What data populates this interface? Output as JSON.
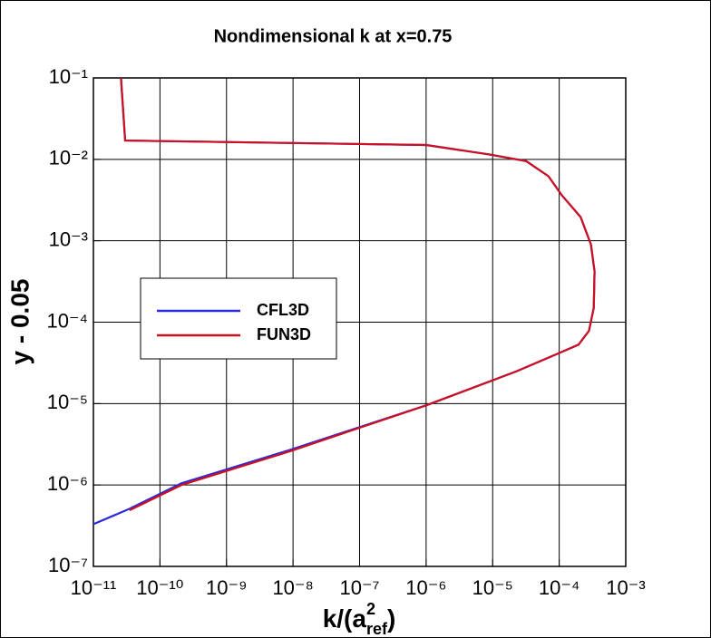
{
  "chart_data": {
    "type": "line",
    "title": "Nondimensional k at x=0.75",
    "xlabel": {
      "base": "k/(a",
      "sup": "2",
      "sub": "ref",
      "close": ")"
    },
    "ylabel": "y - 0.05",
    "xscale": "log",
    "yscale": "log",
    "grid": true,
    "legend": "center-left",
    "xlim": [
      1e-11,
      0.001
    ],
    "ylim": [
      1e-07,
      0.1
    ],
    "xticks": [
      {
        "value": 1e-11,
        "label": "10⁻¹¹"
      },
      {
        "value": 1e-10,
        "label": "10⁻¹⁰"
      },
      {
        "value": 1e-09,
        "label": "10⁻⁹"
      },
      {
        "value": 1e-08,
        "label": "10⁻⁸"
      },
      {
        "value": 1e-07,
        "label": "10⁻⁷"
      },
      {
        "value": 1e-06,
        "label": "10⁻⁶"
      },
      {
        "value": 1e-05,
        "label": "10⁻⁵"
      },
      {
        "value": 0.0001,
        "label": "10⁻⁴"
      },
      {
        "value": 0.001,
        "label": "10⁻³"
      }
    ],
    "yticks": [
      {
        "value": 1e-07,
        "label": "10⁻⁷"
      },
      {
        "value": 1e-06,
        "label": "10⁻⁶"
      },
      {
        "value": 1e-05,
        "label": "10⁻⁵"
      },
      {
        "value": 0.0001,
        "label": "10⁻⁴"
      },
      {
        "value": 0.001,
        "label": "10⁻³"
      },
      {
        "value": 0.01,
        "label": "10⁻²"
      },
      {
        "value": 0.1,
        "label": "10⁻¹"
      }
    ],
    "series": [
      {
        "name": "CFL3D",
        "color": "#2b2bdb",
        "x": [
          2.6e-11,
          3e-11,
          1e-06,
          8.9e-06,
          3.2e-05,
          6.9e-05,
          0.00011,
          0.00021,
          0.0003,
          0.00034,
          0.00033,
          0.00028,
          0.000195,
          9.5e-05,
          2.3e-05,
          1e-06,
          9e-09,
          2.1e-10,
          3.5e-11,
          1e-11
        ],
        "values": [
          0.1,
          0.017,
          0.015,
          0.0115,
          0.0095,
          0.0062,
          0.0036,
          0.00195,
          0.0009,
          0.00042,
          0.000149,
          7.8e-05,
          5.3e-05,
          4.1e-05,
          2.5e-05,
          9.5e-06,
          2.7e-06,
          1.05e-06,
          5.1e-07,
          3.3e-07
        ]
      },
      {
        "name": "FUN3D",
        "color": "#cc1020",
        "x": [
          2.6e-11,
          3e-11,
          1e-06,
          8.9e-06,
          3.2e-05,
          6.9e-05,
          0.00011,
          0.00021,
          0.0003,
          0.00034,
          0.00033,
          0.00028,
          0.000195,
          9.5e-05,
          2.3e-05,
          1e-06,
          9e-09,
          2.1e-10,
          3.5e-11
        ],
        "values": [
          0.1,
          0.017,
          0.015,
          0.0115,
          0.0095,
          0.0062,
          0.0036,
          0.00195,
          0.0009,
          0.00042,
          0.000149,
          7.8e-05,
          5.3e-05,
          4.1e-05,
          2.5e-05,
          9.5e-06,
          2.6e-06,
          1e-06,
          4.9e-07
        ]
      }
    ]
  }
}
